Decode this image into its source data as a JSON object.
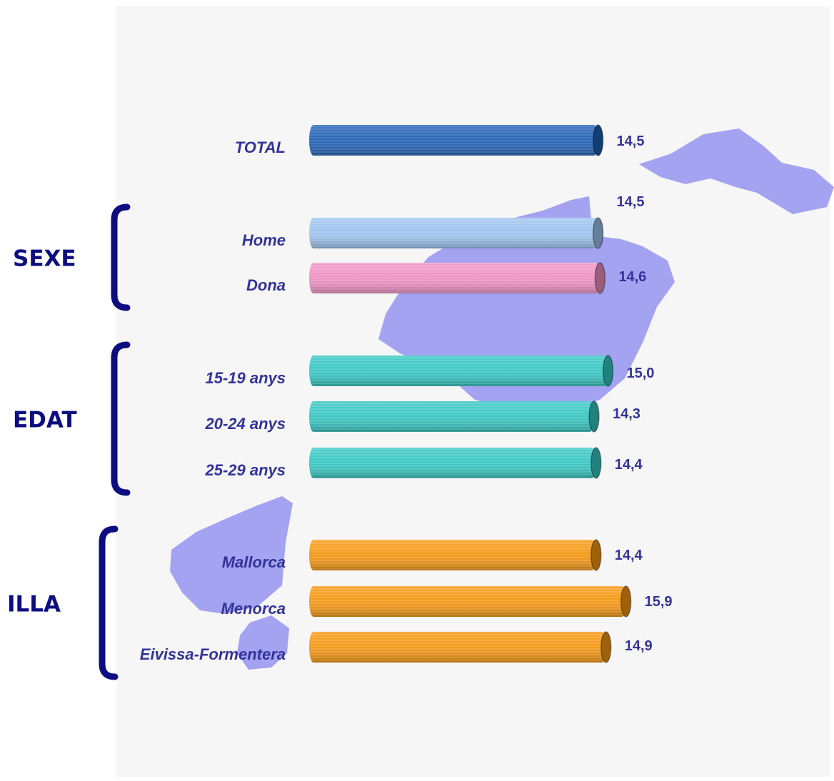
{
  "chart_data": {
    "type": "bar",
    "orientation": "horizontal",
    "title": "",
    "xlabel": "",
    "ylabel": "",
    "xlim": [
      0,
      15.9
    ],
    "grid": false,
    "legend": "none",
    "decimal_separator": ",",
    "groups": [
      {
        "label": "",
        "items": [
          {
            "category": "TOTAL",
            "value": 14.5,
            "value_label": "14,5",
            "color": "#1e5fb4"
          }
        ]
      },
      {
        "label": "SEXE",
        "items": [
          {
            "category": "Home",
            "value": 14.5,
            "value_label": "14,5",
            "color": "#9cc2ee"
          },
          {
            "category": "Dona",
            "value": 14.6,
            "value_label": "14,6",
            "color": "#ee8fc2"
          }
        ]
      },
      {
        "label": "EDAT",
        "items": [
          {
            "category": "15-19 anys",
            "value": 15.0,
            "value_label": "15,0",
            "color": "#33c6c2"
          },
          {
            "category": "20-24 anys",
            "value": 14.3,
            "value_label": "14,3",
            "color": "#33c6c2"
          },
          {
            "category": "25-29 anys",
            "value": 14.4,
            "value_label": "14,4",
            "color": "#33c6c2"
          }
        ]
      },
      {
        "label": "ILLA",
        "items": [
          {
            "category": "Mallorca",
            "value": 14.4,
            "value_label": "14,4",
            "color": "#f5960e"
          },
          {
            "category": "Menorca",
            "value": 15.9,
            "value_label": "15,9",
            "color": "#f5960e"
          },
          {
            "category": "Eivissa-Formentera",
            "value": 14.9,
            "value_label": "14,9",
            "color": "#f5960e"
          }
        ]
      }
    ]
  },
  "colors": {
    "label_text": "#33339a",
    "group_text": "#0d0d80",
    "bracket": "#0d0d80",
    "background_map": "#8e8ef0",
    "background": "#f6f6f6"
  }
}
